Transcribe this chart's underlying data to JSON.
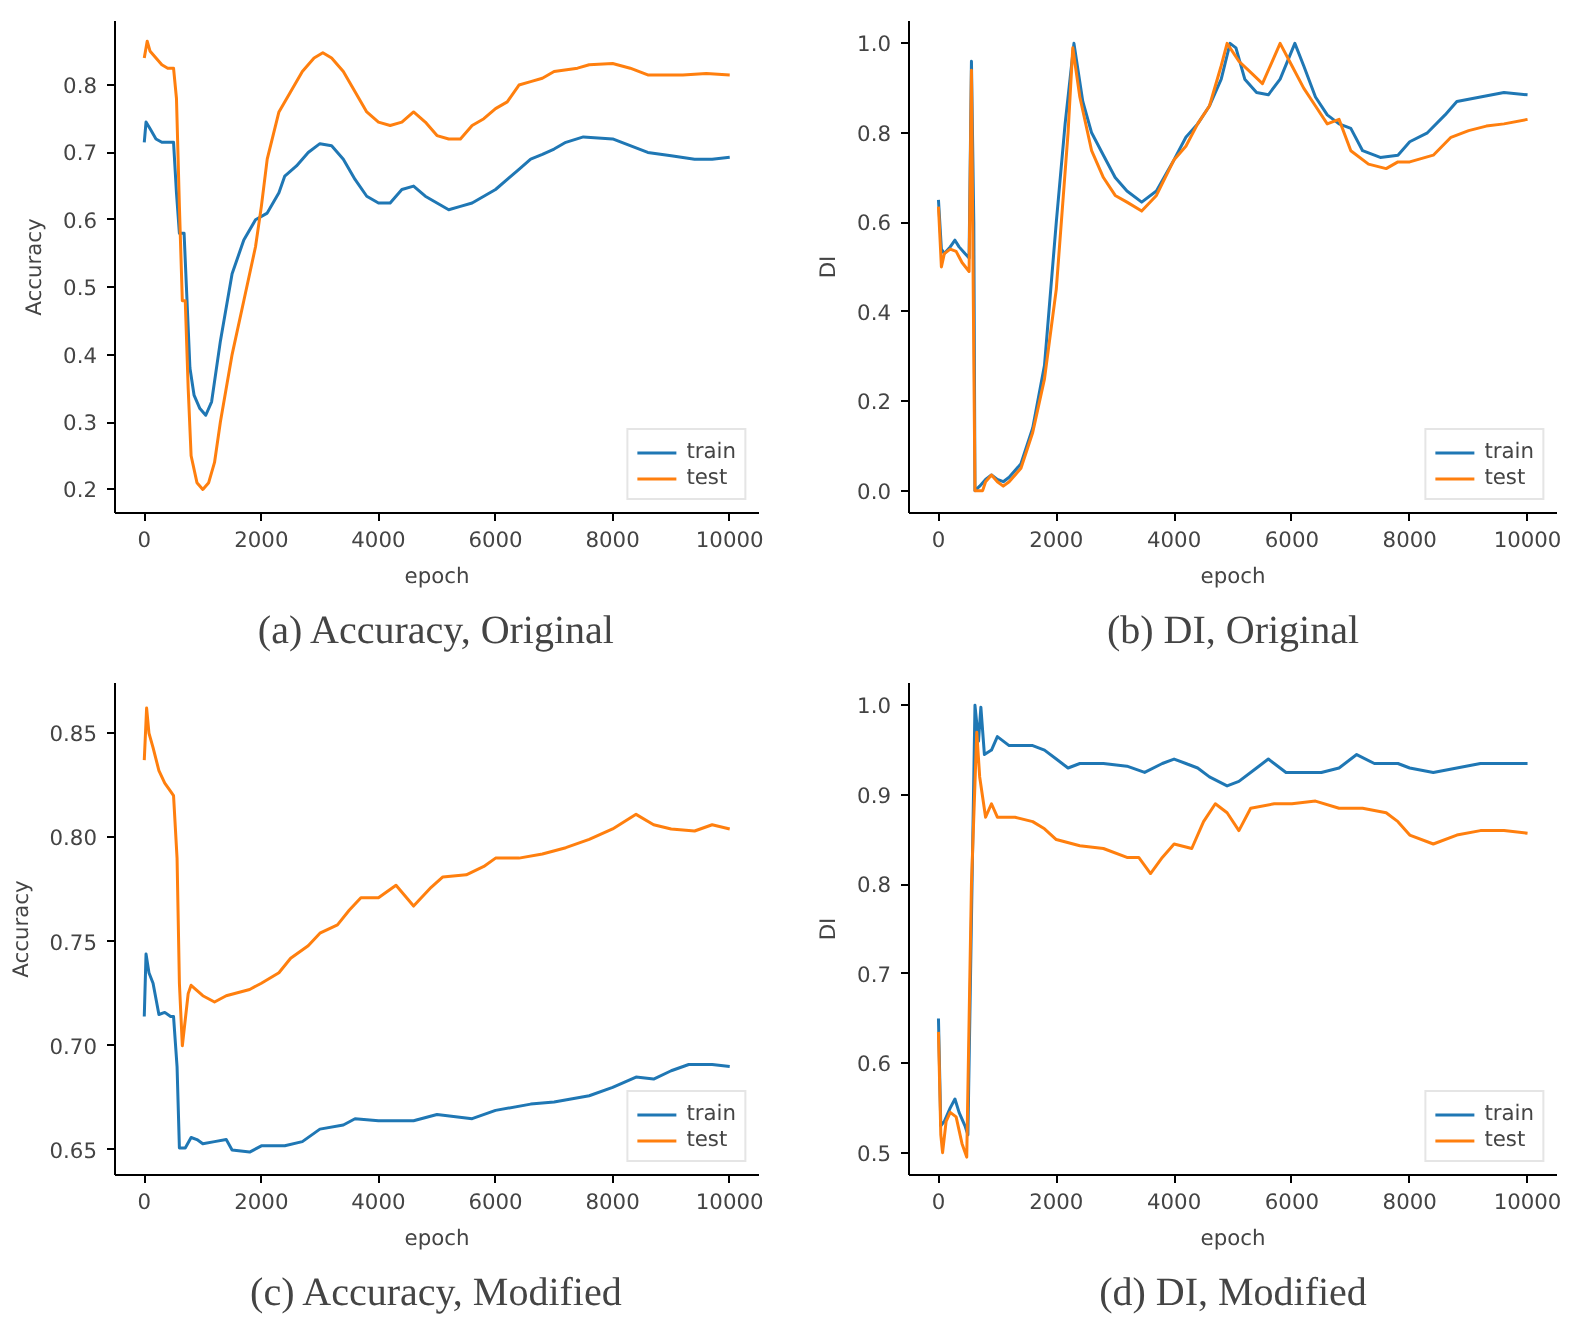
{
  "chart_data": [
    {
      "type": "line",
      "title": "(a) Accuracy, Original",
      "xlabel": "epoch",
      "ylabel": "Accuracy",
      "xlim": [
        -500,
        10500
      ],
      "ylim": [
        0.165,
        0.895
      ],
      "xticks": [
        0,
        2000,
        4000,
        6000,
        8000,
        10000
      ],
      "yticks": [
        0.2,
        0.3,
        0.4,
        0.5,
        0.6,
        0.7,
        0.8
      ],
      "grid": false,
      "legend": "bottom right",
      "marker": "none",
      "line_style": "solid",
      "series": [
        {
          "name": "train",
          "color": "#1f77b4",
          "x": [
            0,
            30,
            100,
            200,
            300,
            500,
            550,
            600,
            680,
            720,
            780,
            850,
            950,
            1050,
            1150,
            1300,
            1500,
            1700,
            1900,
            2100,
            2300,
            2400,
            2600,
            2800,
            3000,
            3200,
            3400,
            3600,
            3800,
            4000,
            4200,
            4400,
            4600,
            4800,
            5000,
            5200,
            5400,
            5600,
            5800,
            6000,
            6200,
            6400,
            6600,
            6800,
            7000,
            7200,
            7500,
            8000,
            8300,
            8600,
            9000,
            9400,
            9700,
            10000
          ],
          "values": [
            0.715,
            0.745,
            0.735,
            0.72,
            0.715,
            0.715,
            0.64,
            0.58,
            0.58,
            0.5,
            0.38,
            0.34,
            0.32,
            0.31,
            0.33,
            0.42,
            0.52,
            0.57,
            0.6,
            0.61,
            0.64,
            0.665,
            0.68,
            0.7,
            0.713,
            0.71,
            0.69,
            0.66,
            0.635,
            0.625,
            0.625,
            0.645,
            0.65,
            0.635,
            0.625,
            0.615,
            0.62,
            0.625,
            0.635,
            0.645,
            0.66,
            0.675,
            0.69,
            0.697,
            0.705,
            0.715,
            0.723,
            0.72,
            0.71,
            0.7,
            0.695,
            0.69,
            0.69,
            0.693
          ]
        },
        {
          "name": "test",
          "color": "#ff7f0e",
          "x": [
            0,
            50,
            100,
            200,
            300,
            400,
            500,
            550,
            600,
            650,
            700,
            750,
            800,
            900,
            1000,
            1100,
            1200,
            1300,
            1500,
            1700,
            1900,
            2000,
            2100,
            2300,
            2500,
            2700,
            2900,
            3050,
            3200,
            3400,
            3600,
            3800,
            4000,
            4200,
            4400,
            4600,
            4800,
            5000,
            5200,
            5400,
            5600,
            5800,
            6000,
            6200,
            6400,
            6600,
            6800,
            7000,
            7400,
            7600,
            8000,
            8300,
            8600,
            8800,
            9200,
            9600,
            10000
          ],
          "values": [
            0.84,
            0.865,
            0.85,
            0.84,
            0.83,
            0.825,
            0.825,
            0.78,
            0.62,
            0.48,
            0.48,
            0.35,
            0.25,
            0.21,
            0.2,
            0.21,
            0.24,
            0.3,
            0.4,
            0.48,
            0.56,
            0.62,
            0.69,
            0.76,
            0.79,
            0.82,
            0.84,
            0.848,
            0.84,
            0.82,
            0.79,
            0.76,
            0.745,
            0.74,
            0.745,
            0.76,
            0.745,
            0.725,
            0.72,
            0.72,
            0.74,
            0.75,
            0.765,
            0.775,
            0.8,
            0.805,
            0.81,
            0.82,
            0.825,
            0.83,
            0.832,
            0.825,
            0.815,
            0.815,
            0.815,
            0.817,
            0.815
          ]
        }
      ]
    },
    {
      "type": "line",
      "title": "(b) DI, Original",
      "xlabel": "epoch",
      "ylabel": "DI",
      "xlim": [
        -500,
        10500
      ],
      "ylim": [
        -0.05,
        1.05
      ],
      "xticks": [
        0,
        2000,
        4000,
        6000,
        8000,
        10000
      ],
      "yticks": [
        {
          "value": 0,
          "label": "0.0"
        },
        0.2,
        0.4,
        0.6,
        0.8,
        {
          "value": 1,
          "label": "1.0"
        }
      ],
      "grid": false,
      "legend": "bottom right",
      "marker": "none",
      "line_style": "solid",
      "series": [
        {
          "name": "train",
          "color": "#1f77b4",
          "x": [
            0,
            50,
            100,
            200,
            280,
            350,
            450,
            520,
            560,
            600,
            620,
            700,
            800,
            900,
            1000,
            1100,
            1200,
            1400,
            1600,
            1800,
            2000,
            2150,
            2300,
            2450,
            2600,
            2800,
            3000,
            3200,
            3450,
            3700,
            4000,
            4200,
            4400,
            4600,
            4800,
            4950,
            5050,
            5200,
            5400,
            5600,
            5800,
            6050,
            6200,
            6400,
            6600,
            6800,
            7000,
            7200,
            7500,
            7800,
            8000,
            8300,
            8600,
            8800,
            9200,
            9600,
            10000
          ],
          "values": [
            0.65,
            0.54,
            0.53,
            0.545,
            0.56,
            0.545,
            0.53,
            0.52,
            0.96,
            0.6,
            0.0,
            0.01,
            0.025,
            0.035,
            0.025,
            0.02,
            0.03,
            0.06,
            0.14,
            0.28,
            0.6,
            0.82,
            1.0,
            0.87,
            0.8,
            0.75,
            0.7,
            0.67,
            0.645,
            0.67,
            0.74,
            0.79,
            0.82,
            0.86,
            0.92,
            1.0,
            0.99,
            0.92,
            0.89,
            0.885,
            0.92,
            1.0,
            0.95,
            0.88,
            0.84,
            0.82,
            0.81,
            0.76,
            0.745,
            0.75,
            0.78,
            0.8,
            0.84,
            0.87,
            0.88,
            0.89,
            0.885
          ]
        },
        {
          "name": "test",
          "color": "#ff7f0e",
          "x": [
            0,
            50,
            100,
            200,
            300,
            400,
            520,
            560,
            600,
            620,
            750,
            800,
            900,
            1000,
            1100,
            1200,
            1400,
            1600,
            1800,
            2000,
            2200,
            2280,
            2400,
            2600,
            2800,
            3000,
            3200,
            3450,
            3700,
            4000,
            4200,
            4400,
            4600,
            4800,
            4900,
            5100,
            5300,
            5500,
            5700,
            5800,
            6000,
            6200,
            6400,
            6600,
            6800,
            7000,
            7300,
            7600,
            7800,
            8000,
            8400,
            8700,
            9000,
            9300,
            9600,
            10000
          ],
          "values": [
            0.635,
            0.5,
            0.53,
            0.54,
            0.535,
            0.51,
            0.49,
            0.94,
            0.3,
            0.0,
            0.0,
            0.02,
            0.035,
            0.02,
            0.01,
            0.02,
            0.05,
            0.13,
            0.25,
            0.45,
            0.8,
            0.99,
            0.88,
            0.76,
            0.7,
            0.66,
            0.645,
            0.625,
            0.66,
            0.74,
            0.77,
            0.82,
            0.86,
            0.95,
            1.0,
            0.96,
            0.935,
            0.91,
            0.97,
            1.0,
            0.95,
            0.9,
            0.86,
            0.82,
            0.83,
            0.76,
            0.73,
            0.72,
            0.735,
            0.735,
            0.75,
            0.79,
            0.805,
            0.815,
            0.82,
            0.83
          ]
        }
      ]
    },
    {
      "type": "line",
      "title": "(c) Accuracy, Modified",
      "xlabel": "epoch",
      "ylabel": "Accuracy",
      "xlim": [
        -500,
        10500
      ],
      "ylim": [
        0.638,
        0.874
      ],
      "xticks": [
        0,
        2000,
        4000,
        6000,
        8000,
        10000
      ],
      "yticks": [
        0.65,
        {
          "value": 0.7,
          "label": "0.70"
        },
        0.75,
        {
          "value": 0.8,
          "label": "0.80"
        },
        0.85
      ],
      "grid": false,
      "legend": "bottom right",
      "marker": "none",
      "line_style": "solid",
      "series": [
        {
          "name": "train",
          "color": "#1f77b4",
          "x": [
            0,
            30,
            80,
            150,
            250,
            350,
            450,
            500,
            560,
            600,
            700,
            800,
            900,
            1000,
            1200,
            1400,
            1500,
            1800,
            2000,
            2400,
            2700,
            3000,
            3400,
            3600,
            4000,
            4600,
            5000,
            5600,
            6000,
            6600,
            7000,
            7600,
            8000,
            8400,
            8700,
            9000,
            9300,
            9700,
            10000
          ],
          "values": [
            0.714,
            0.744,
            0.735,
            0.73,
            0.715,
            0.716,
            0.714,
            0.714,
            0.69,
            0.651,
            0.651,
            0.656,
            0.655,
            0.653,
            0.654,
            0.655,
            0.65,
            0.649,
            0.652,
            0.652,
            0.654,
            0.66,
            0.662,
            0.665,
            0.664,
            0.664,
            0.667,
            0.665,
            0.669,
            0.672,
            0.673,
            0.676,
            0.68,
            0.685,
            0.684,
            0.688,
            0.691,
            0.691,
            0.69
          ]
        },
        {
          "name": "test",
          "color": "#ff7f0e",
          "x": [
            0,
            40,
            80,
            150,
            250,
            350,
            450,
            500,
            560,
            600,
            650,
            750,
            800,
            1000,
            1200,
            1400,
            1800,
            2000,
            2300,
            2500,
            2800,
            3000,
            3300,
            3500,
            3700,
            4000,
            4300,
            4600,
            4900,
            5100,
            5500,
            5800,
            6000,
            6400,
            6800,
            7200,
            7600,
            8000,
            8400,
            8700,
            9000,
            9400,
            9700,
            10000
          ],
          "values": [
            0.837,
            0.862,
            0.85,
            0.843,
            0.832,
            0.826,
            0.822,
            0.82,
            0.79,
            0.73,
            0.7,
            0.725,
            0.729,
            0.724,
            0.721,
            0.724,
            0.727,
            0.73,
            0.735,
            0.742,
            0.748,
            0.754,
            0.758,
            0.765,
            0.771,
            0.771,
            0.777,
            0.767,
            0.776,
            0.781,
            0.782,
            0.786,
            0.79,
            0.79,
            0.792,
            0.795,
            0.799,
            0.804,
            0.811,
            0.806,
            0.804,
            0.803,
            0.806,
            0.804
          ]
        }
      ]
    },
    {
      "type": "line",
      "title": "(d) DI, Modified",
      "xlabel": "epoch",
      "ylabel": "DI",
      "xlim": [
        -500,
        10500
      ],
      "ylim": [
        0.475,
        1.025
      ],
      "xticks": [
        0,
        2000,
        4000,
        6000,
        8000,
        10000
      ],
      "yticks": [
        0.5,
        0.6,
        0.7,
        0.8,
        0.9,
        {
          "value": 1,
          "label": "1.0"
        }
      ],
      "grid": false,
      "legend": "bottom right",
      "marker": "none",
      "line_style": "solid",
      "series": [
        {
          "name": "train",
          "color": "#1f77b4",
          "x": [
            0,
            40,
            100,
            200,
            280,
            350,
            450,
            500,
            620,
            680,
            720,
            780,
            900,
            1000,
            1200,
            1400,
            1600,
            1800,
            2000,
            2200,
            2400,
            2800,
            3200,
            3500,
            3800,
            4000,
            4200,
            4400,
            4600,
            4900,
            5100,
            5400,
            5600,
            5900,
            6200,
            6500,
            6800,
            7100,
            7400,
            7800,
            8000,
            8400,
            8800,
            9200,
            9600,
            10000
          ],
          "values": [
            0.65,
            0.53,
            0.535,
            0.55,
            0.56,
            0.545,
            0.53,
            0.52,
            1.0,
            0.96,
            0.998,
            0.945,
            0.95,
            0.965,
            0.955,
            0.955,
            0.955,
            0.95,
            0.94,
            0.93,
            0.935,
            0.935,
            0.932,
            0.925,
            0.935,
            0.94,
            0.935,
            0.93,
            0.92,
            0.91,
            0.915,
            0.93,
            0.94,
            0.925,
            0.925,
            0.925,
            0.93,
            0.945,
            0.935,
            0.935,
            0.93,
            0.925,
            0.93,
            0.935,
            0.935,
            0.935
          ]
        },
        {
          "name": "test",
          "color": "#ff7f0e",
          "x": [
            0,
            40,
            70,
            130,
            200,
            300,
            400,
            480,
            560,
            650,
            700,
            800,
            900,
            1000,
            1300,
            1600,
            1800,
            2000,
            2400,
            2800,
            3200,
            3400,
            3600,
            3800,
            4000,
            4300,
            4500,
            4700,
            4900,
            5100,
            5300,
            5700,
            6000,
            6400,
            6800,
            7200,
            7600,
            7800,
            8000,
            8400,
            8800,
            9200,
            9600,
            10000
          ],
          "values": [
            0.635,
            0.52,
            0.5,
            0.535,
            0.545,
            0.54,
            0.51,
            0.495,
            0.8,
            0.97,
            0.92,
            0.875,
            0.89,
            0.875,
            0.875,
            0.87,
            0.862,
            0.85,
            0.843,
            0.84,
            0.83,
            0.83,
            0.812,
            0.83,
            0.845,
            0.84,
            0.87,
            0.89,
            0.88,
            0.86,
            0.885,
            0.89,
            0.89,
            0.893,
            0.885,
            0.885,
            0.88,
            0.87,
            0.855,
            0.845,
            0.855,
            0.86,
            0.86,
            0.857
          ]
        }
      ]
    }
  ]
}
